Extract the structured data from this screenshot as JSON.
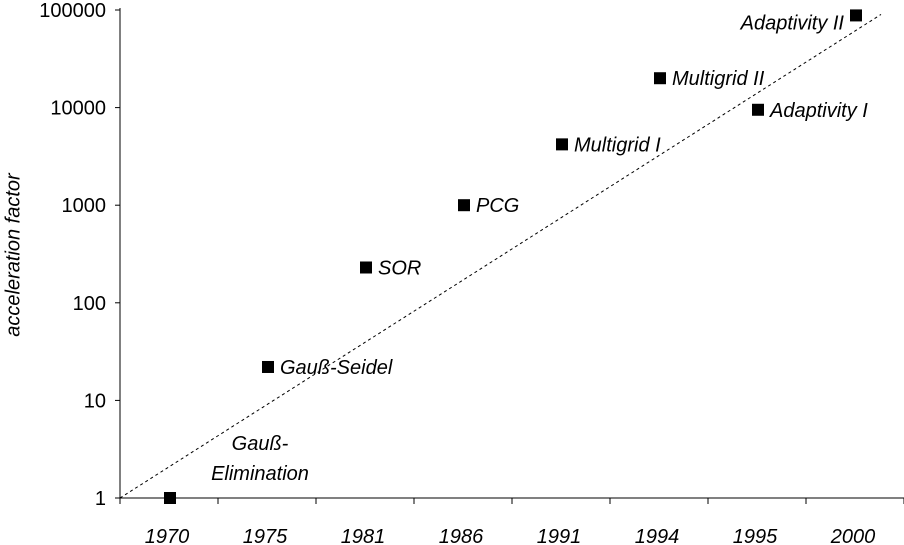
{
  "chart_data": {
    "type": "scatter",
    "title": "",
    "xlabel": "",
    "ylabel": "acceleration factor",
    "yscale": "log",
    "ylim": [
      1,
      100000
    ],
    "y_ticks": [
      "1",
      "10",
      "100",
      "1000",
      "10000",
      "100000"
    ],
    "categories": [
      "1970",
      "1975",
      "1981",
      "1986",
      "1991",
      "1994",
      "1995",
      "2000"
    ],
    "points": [
      {
        "x": "1970",
        "y": 1,
        "label": [
          "Gauß-",
          "Elimination"
        ]
      },
      {
        "x": "1975",
        "y": 22,
        "label": [
          "Gauß-Seidel"
        ]
      },
      {
        "x": "1981",
        "y": 230,
        "label": [
          "SOR"
        ]
      },
      {
        "x": "1986",
        "y": 1000,
        "label": [
          "PCG"
        ]
      },
      {
        "x": "1991",
        "y": 4200,
        "label": [
          "Multigrid I"
        ]
      },
      {
        "x": "1994",
        "y": 20000,
        "label": [
          "Multigrid II"
        ]
      },
      {
        "x": "1995",
        "y": 9500,
        "label": [
          "Adaptivity I"
        ]
      },
      {
        "x": "2000",
        "y": 88000,
        "label": [
          "Adaptivity II"
        ]
      }
    ],
    "trendline": {
      "style": "dotted",
      "from": [
        1,
        1
      ],
      "to": [
        9,
        90000
      ]
    },
    "legend": "none",
    "grid": false,
    "marker": {
      "shape": "square",
      "color": "#000000"
    }
  }
}
